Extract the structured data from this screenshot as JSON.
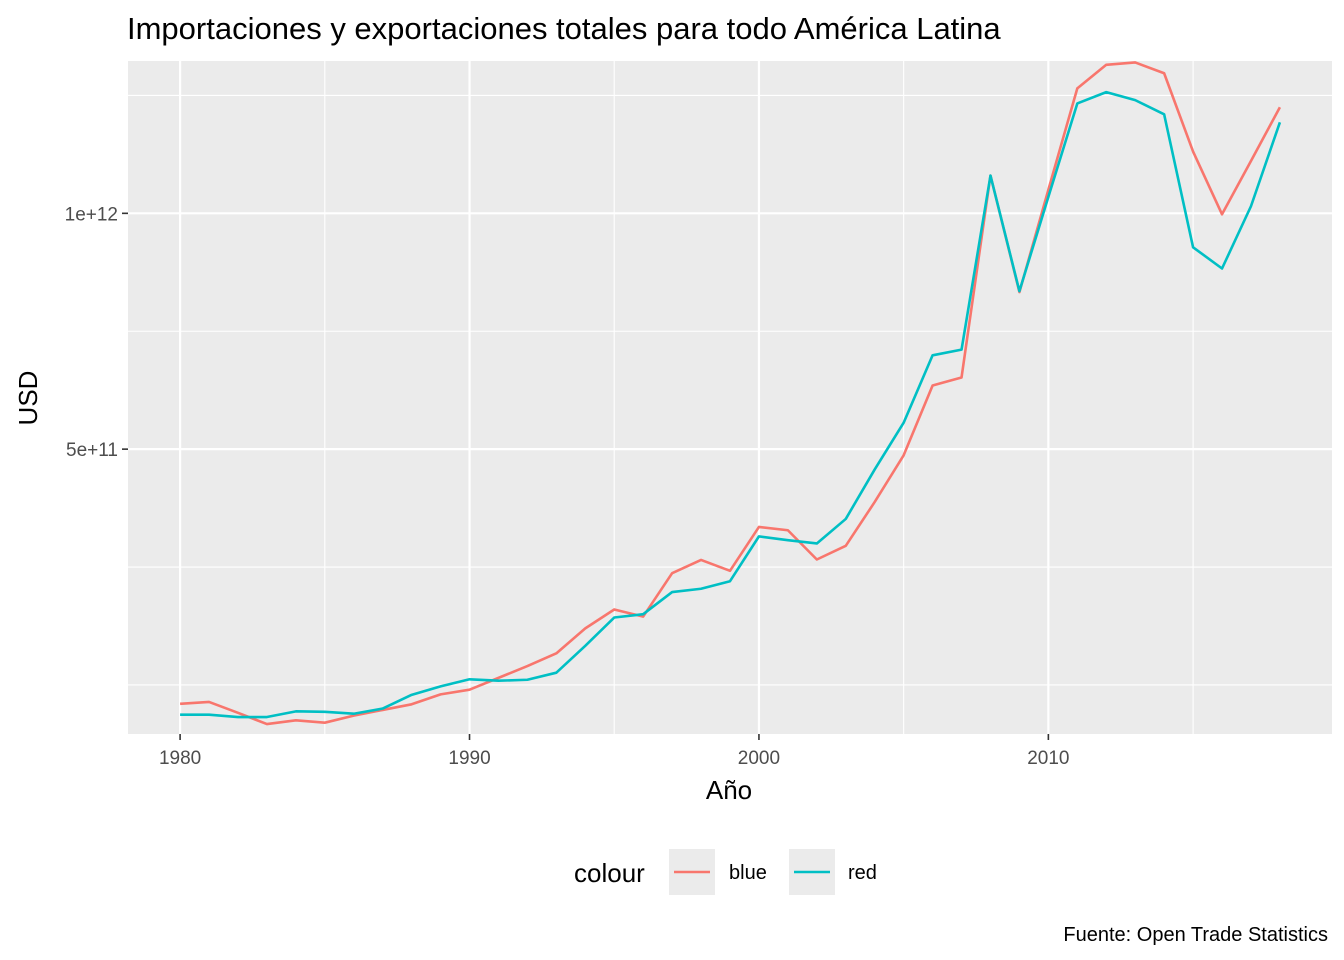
{
  "chart_data": {
    "type": "line",
    "title": "Importaciones y exportaciones totales para todo América Latina",
    "xlabel": "Año",
    "ylabel": "USD",
    "caption": "Fuente: Open Trade Statistics",
    "legend_title": "colour",
    "legend_position": "bottom",
    "grid": true,
    "xlim": [
      1978.2,
      2019.8
    ],
    "ylim": [
      -104000000000.0,
      1323000000000.0
    ],
    "x_ticks": [
      1980,
      1990,
      2000,
      2010
    ],
    "x_tick_labels": [
      "1980",
      "1990",
      "2000",
      "2010"
    ],
    "y_ticks": [
      500000000000.0,
      1000000000000.0
    ],
    "y_tick_labels": [
      "5e+11",
      "1e+12"
    ],
    "x": [
      1980,
      1981,
      1982,
      1983,
      1984,
      1985,
      1986,
      1987,
      1988,
      1989,
      1990,
      1991,
      1992,
      1993,
      1994,
      1995,
      1996,
      1997,
      1998,
      1999,
      2000,
      2001,
      2002,
      2003,
      2004,
      2005,
      2006,
      2007,
      2008,
      2009,
      2010,
      2011,
      2012,
      2013,
      2014,
      2015,
      2016,
      2017,
      2018
    ],
    "series": [
      {
        "name": "blue",
        "color": "#F8766D",
        "values": [
          -40000000000.0,
          -36000000000.0,
          -59000000000.0,
          -83000000000.0,
          -75000000000.0,
          -80000000000.0,
          -65000000000.0,
          -53000000000.0,
          -41000000000.0,
          -20000000000.0,
          -10000000000.0,
          15000000000.0,
          40000000000.0,
          67000000000.0,
          120000000000.0,
          160000000000.0,
          145000000000.0,
          237000000000.0,
          265000000000.0,
          242000000000.0,
          335000000000.0,
          328000000000.0,
          266000000000.0,
          295000000000.0,
          388000000000.0,
          487000000000.0,
          635000000000.0,
          652000000000.0,
          1080000000000.0,
          833000000000.0,
          1050000000000.0,
          1265000000000.0,
          1315000000000.0,
          1320000000000.0,
          1297000000000.0,
          1131000000000.0,
          998000000000.0,
          1111000000000.0,
          1225000000000.0
        ]
      },
      {
        "name": "red",
        "color": "#00BFC4",
        "values": [
          -63000000000.0,
          -63000000000.0,
          -68000000000.0,
          -68000000000.0,
          -56000000000.0,
          -57000000000.0,
          -61000000000.0,
          -50000000000.0,
          -21000000000.0,
          -3000000000.0,
          12000000000.0,
          9000000000.0,
          11000000000.0,
          26000000000.0,
          83000000000.0,
          143000000000.0,
          150000000000.0,
          197000000000.0,
          204000000000.0,
          220000000000.0,
          315000000000.0,
          307000000000.0,
          300000000000.0,
          352000000000.0,
          457000000000.0,
          556000000000.0,
          699000000000.0,
          711000000000.0,
          1080000000000.0,
          835000000000.0,
          1035000000000.0,
          1233000000000.0,
          1257000000000.0,
          1240000000000.0,
          1210000000000.0,
          928000000000.0,
          883000000000.0,
          1015000000000.0,
          1193000000000.0
        ]
      }
    ]
  }
}
